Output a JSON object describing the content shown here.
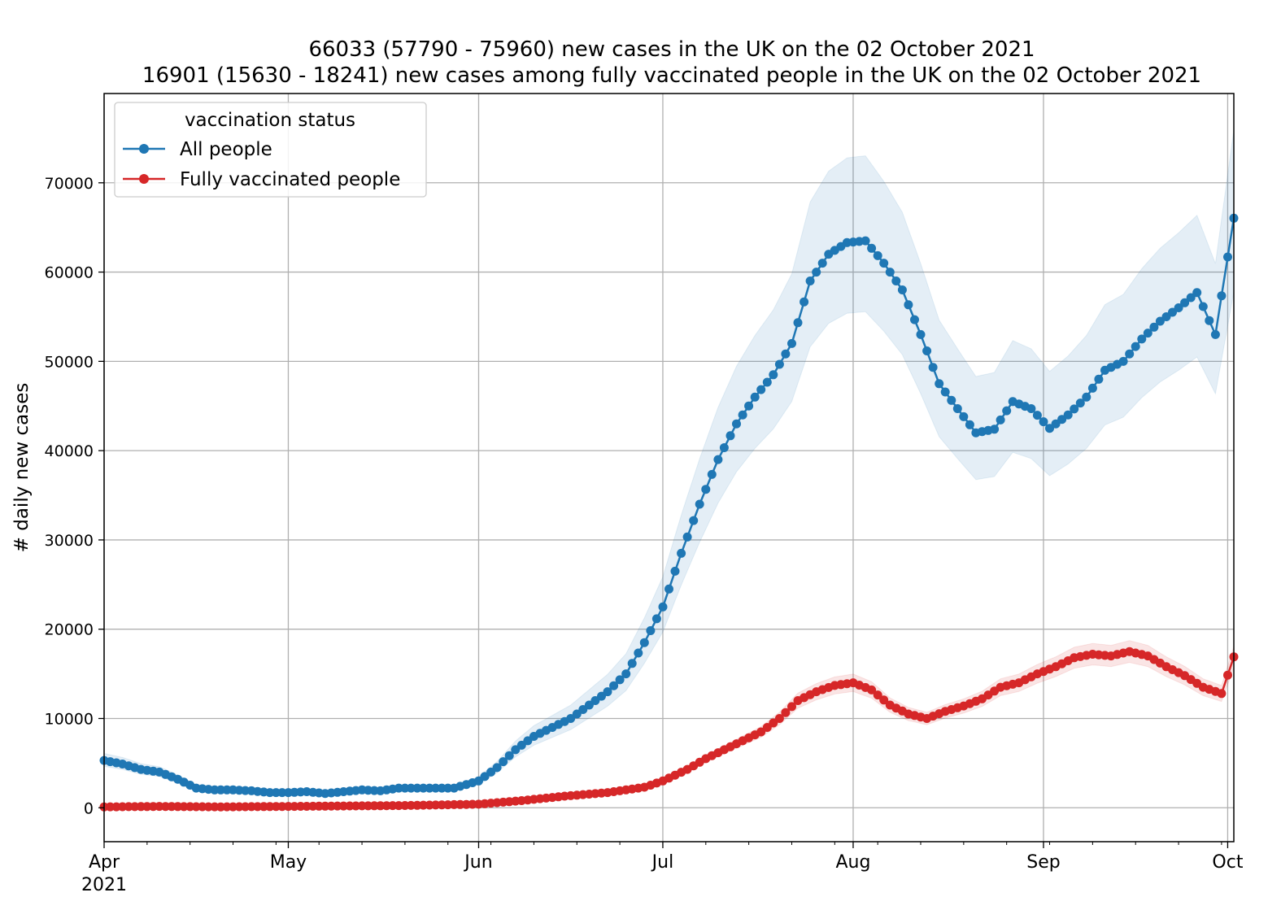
{
  "chart_data": {
    "type": "line",
    "title": "66033 (57790 - 75960) new cases in the UK on the 02 October 2021",
    "subtitle": "16901 (15630 - 18241) new cases among fully vaccinated people in the UK on the 02 October 2021",
    "xlabel": "",
    "ylabel": "# daily new cases",
    "x_start": "2021-04-01",
    "x_end": "2021-10-02",
    "xlim": [
      "2021-04-01",
      "2021-10-02"
    ],
    "ylim": [
      -3800,
      80000
    ],
    "x_ticks": [
      {
        "label": "Apr",
        "sublabel": "2021",
        "date": "2021-04-01"
      },
      {
        "label": "May",
        "sublabel": "",
        "date": "2021-05-01"
      },
      {
        "label": "Jun",
        "sublabel": "",
        "date": "2021-06-01"
      },
      {
        "label": "Jul",
        "sublabel": "",
        "date": "2021-07-01"
      },
      {
        "label": "Aug",
        "sublabel": "",
        "date": "2021-08-01"
      },
      {
        "label": "Sep",
        "sublabel": "",
        "date": "2021-09-01"
      },
      {
        "label": "Oct",
        "sublabel": "",
        "date": "2021-10-01"
      }
    ],
    "y_ticks": [
      "0",
      "10000",
      "20000",
      "30000",
      "40000",
      "50000",
      "60000",
      "70000"
    ],
    "grid": true,
    "legend": {
      "title": "vaccination status",
      "position": "top-left",
      "entries": [
        "All people",
        "Fully vaccinated people"
      ]
    },
    "series": [
      {
        "name": "All people",
        "color": "#1f77b4",
        "marker": "circle",
        "band_upper_ratio": 1.15,
        "band_lower_ratio": 0.875,
        "points": [
          [
            "2021-04-01",
            5300
          ],
          [
            "2021-04-04",
            4900
          ],
          [
            "2021-04-07",
            4300
          ],
          [
            "2021-04-10",
            4000
          ],
          [
            "2021-04-13",
            3200
          ],
          [
            "2021-04-16",
            2200
          ],
          [
            "2021-04-19",
            2000
          ],
          [
            "2021-04-22",
            2000
          ],
          [
            "2021-04-25",
            1900
          ],
          [
            "2021-04-28",
            1700
          ],
          [
            "2021-05-01",
            1700
          ],
          [
            "2021-05-04",
            1800
          ],
          [
            "2021-05-07",
            1600
          ],
          [
            "2021-05-10",
            1800
          ],
          [
            "2021-05-13",
            2000
          ],
          [
            "2021-05-16",
            1900
          ],
          [
            "2021-05-19",
            2200
          ],
          [
            "2021-05-22",
            2200
          ],
          [
            "2021-05-25",
            2200
          ],
          [
            "2021-05-28",
            2200
          ],
          [
            "2021-06-01",
            3000
          ],
          [
            "2021-06-04",
            4500
          ],
          [
            "2021-06-07",
            6500
          ],
          [
            "2021-06-10",
            8000
          ],
          [
            "2021-06-13",
            9000
          ],
          [
            "2021-06-16",
            10000
          ],
          [
            "2021-06-19",
            11500
          ],
          [
            "2021-06-22",
            13000
          ],
          [
            "2021-06-25",
            15000
          ],
          [
            "2021-06-28",
            18500
          ],
          [
            "2021-07-01",
            22500
          ],
          [
            "2021-07-04",
            28500
          ],
          [
            "2021-07-07",
            34000
          ],
          [
            "2021-07-10",
            39000
          ],
          [
            "2021-07-13",
            43000
          ],
          [
            "2021-07-16",
            46000
          ],
          [
            "2021-07-19",
            48500
          ],
          [
            "2021-07-22",
            52000
          ],
          [
            "2021-07-25",
            59000
          ],
          [
            "2021-07-28",
            62000
          ],
          [
            "2021-07-31",
            63300
          ],
          [
            "2021-08-03",
            63500
          ],
          [
            "2021-08-06",
            61000
          ],
          [
            "2021-08-09",
            58000
          ],
          [
            "2021-08-12",
            53000
          ],
          [
            "2021-08-15",
            47500
          ],
          [
            "2021-08-18",
            44700
          ],
          [
            "2021-08-21",
            42000
          ],
          [
            "2021-08-24",
            42400
          ],
          [
            "2021-08-27",
            45500
          ],
          [
            "2021-08-30",
            44700
          ],
          [
            "2021-09-02",
            42500
          ],
          [
            "2021-09-05",
            44000
          ],
          [
            "2021-09-08",
            46000
          ],
          [
            "2021-09-11",
            49000
          ],
          [
            "2021-09-14",
            50000
          ],
          [
            "2021-09-17",
            52500
          ],
          [
            "2021-09-20",
            54500
          ],
          [
            "2021-09-23",
            56000
          ],
          [
            "2021-09-26",
            57700
          ],
          [
            "2021-09-29",
            53000
          ],
          [
            "2021-10-02",
            66033
          ]
        ]
      },
      {
        "name": "Fully vaccinated people",
        "color": "#d62728",
        "marker": "circle",
        "band_upper_ratio": 1.07,
        "band_lower_ratio": 0.93,
        "points": [
          [
            "2021-04-01",
            100
          ],
          [
            "2021-04-10",
            150
          ],
          [
            "2021-04-20",
            100
          ],
          [
            "2021-05-01",
            150
          ],
          [
            "2021-05-10",
            200
          ],
          [
            "2021-05-20",
            250
          ],
          [
            "2021-06-01",
            400
          ],
          [
            "2021-06-08",
            800
          ],
          [
            "2021-06-15",
            1300
          ],
          [
            "2021-06-22",
            1700
          ],
          [
            "2021-06-28",
            2300
          ],
          [
            "2021-07-01",
            3000
          ],
          [
            "2021-07-05",
            4300
          ],
          [
            "2021-07-08",
            5500
          ],
          [
            "2021-07-11",
            6500
          ],
          [
            "2021-07-14",
            7500
          ],
          [
            "2021-07-17",
            8500
          ],
          [
            "2021-07-20",
            10000
          ],
          [
            "2021-07-23",
            12000
          ],
          [
            "2021-07-26",
            13000
          ],
          [
            "2021-07-29",
            13700
          ],
          [
            "2021-08-01",
            14000
          ],
          [
            "2021-08-04",
            13200
          ],
          [
            "2021-08-07",
            11500
          ],
          [
            "2021-08-10",
            10500
          ],
          [
            "2021-08-13",
            10000
          ],
          [
            "2021-08-16",
            10800
          ],
          [
            "2021-08-19",
            11400
          ],
          [
            "2021-08-22",
            12200
          ],
          [
            "2021-08-25",
            13500
          ],
          [
            "2021-08-28",
            14000
          ],
          [
            "2021-08-31",
            15000
          ],
          [
            "2021-09-03",
            15800
          ],
          [
            "2021-09-06",
            16800
          ],
          [
            "2021-09-09",
            17200
          ],
          [
            "2021-09-12",
            17000
          ],
          [
            "2021-09-15",
            17500
          ],
          [
            "2021-09-18",
            17000
          ],
          [
            "2021-09-21",
            15800
          ],
          [
            "2021-09-24",
            14800
          ],
          [
            "2021-09-27",
            13500
          ],
          [
            "2021-09-30",
            12800
          ],
          [
            "2021-10-02",
            16901
          ]
        ]
      }
    ]
  }
}
